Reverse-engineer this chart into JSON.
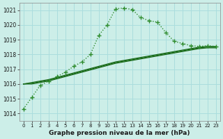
{
  "title": "Graphe pression niveau de la mer (hPa)",
  "bg_color": "#cceee8",
  "plot_bg_color": "#cceee8",
  "grid_color": "#aadddd",
  "line_color_main": "#1a6b1a",
  "line_color_secondary": "#2d8b2d",
  "ylim": [
    1013.5,
    1021.5
  ],
  "yticks": [
    1014,
    1015,
    1016,
    1017,
    1018,
    1019,
    1020,
    1021
  ],
  "xlim": [
    -0.5,
    23.5
  ],
  "xticks": [
    0,
    1,
    2,
    3,
    4,
    5,
    6,
    7,
    8,
    9,
    10,
    11,
    12,
    13,
    14,
    15,
    16,
    17,
    18,
    19,
    20,
    21,
    22,
    23
  ],
  "main_series": [
    1014.3,
    1015.1,
    1015.9,
    1016.2,
    1016.5,
    1016.8,
    1017.2,
    1017.5,
    1018.0,
    1019.3,
    1020.0,
    1021.1,
    1021.15,
    1021.05,
    1020.5,
    1020.3,
    1020.2,
    1019.5,
    1018.9,
    1018.75,
    1018.6,
    1018.55,
    1018.6,
    1018.55
  ],
  "line2": [
    1016.0,
    1016.1,
    1016.2,
    1016.3,
    1016.45,
    1016.6,
    1016.75,
    1016.9,
    1017.05,
    1017.2,
    1017.35,
    1017.5,
    1017.6,
    1017.7,
    1017.8,
    1017.9,
    1018.0,
    1018.1,
    1018.2,
    1018.3,
    1018.4,
    1018.5,
    1018.55,
    1018.55
  ],
  "line3": [
    1016.0,
    1016.05,
    1016.15,
    1016.25,
    1016.4,
    1016.55,
    1016.7,
    1016.85,
    1017.0,
    1017.15,
    1017.3,
    1017.45,
    1017.55,
    1017.65,
    1017.75,
    1017.85,
    1017.95,
    1018.05,
    1018.15,
    1018.25,
    1018.35,
    1018.45,
    1018.5,
    1018.5
  ],
  "line4": [
    1016.0,
    1016.0,
    1016.1,
    1016.2,
    1016.35,
    1016.5,
    1016.65,
    1016.8,
    1016.95,
    1017.1,
    1017.25,
    1017.4,
    1017.5,
    1017.6,
    1017.7,
    1017.8,
    1017.9,
    1018.0,
    1018.1,
    1018.2,
    1018.3,
    1018.4,
    1018.45,
    1018.45
  ]
}
